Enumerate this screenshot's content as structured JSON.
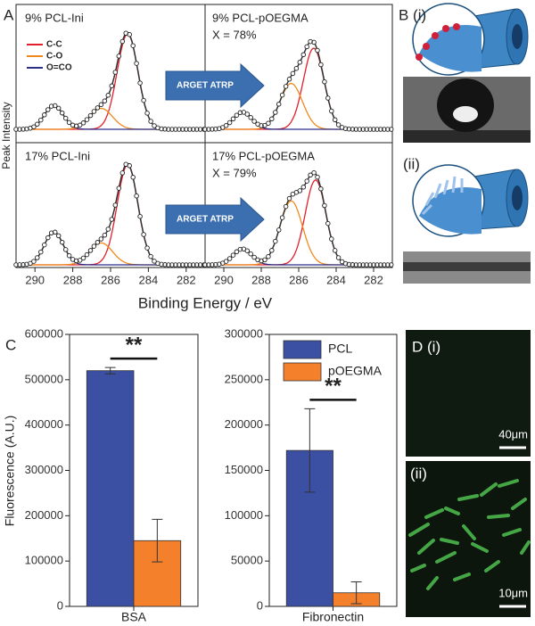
{
  "chart_data": [
    {
      "type": "xps",
      "panel_label": "A",
      "ylabel": "Peak Intensity",
      "xlabel": "Binding Energy / eV",
      "xlim": [
        291,
        281
      ],
      "xticks": [
        290,
        288,
        286,
        284,
        282
      ],
      "arrow_label": "ARGET ATRP",
      "legend": [
        {
          "name": "C-C",
          "color": "#e0202a"
        },
        {
          "name": "C-O",
          "color": "#f08a1c"
        },
        {
          "name": "O=CO",
          "color": "#2a2f8a"
        }
      ],
      "spectra": [
        {
          "labels": [
            "9% PCL-Ini"
          ],
          "components": [
            {
              "center": 285.1,
              "height": 100,
              "width": 0.55
            },
            {
              "center": 286.5,
              "height": 22,
              "width": 0.6
            },
            {
              "center": 289.0,
              "height": 25,
              "width": 0.5
            }
          ]
        },
        {
          "labels": [
            "9% PCL-pOEGMA",
            "X = 78%"
          ],
          "components": [
            {
              "center": 285.2,
              "height": 85,
              "width": 0.55
            },
            {
              "center": 286.4,
              "height": 48,
              "width": 0.6
            },
            {
              "center": 289.0,
              "height": 18,
              "width": 0.5
            }
          ]
        },
        {
          "labels": [
            "17% PCL-Ini"
          ],
          "components": [
            {
              "center": 285.1,
              "height": 100,
              "width": 0.55
            },
            {
              "center": 286.5,
              "height": 22,
              "width": 0.6
            },
            {
              "center": 289.0,
              "height": 33,
              "width": 0.5
            }
          ]
        },
        {
          "labels": [
            "17% PCL-pOEGMA",
            "X = 79%"
          ],
          "components": [
            {
              "center": 285.1,
              "height": 85,
              "width": 0.55
            },
            {
              "center": 286.4,
              "height": 64,
              "width": 0.6
            },
            {
              "center": 289.0,
              "height": 16,
              "width": 0.5
            }
          ]
        }
      ]
    },
    {
      "type": "grouped-bar",
      "panel_label": "C",
      "ylabel": "Fluorescence (A.U.)",
      "series": [
        {
          "name": "PCL",
          "color": "#3b4fa3"
        },
        {
          "name": "pOEGMA",
          "color": "#f4802c"
        }
      ],
      "subplots": [
        {
          "category": "BSA",
          "ylim": [
            0,
            600000
          ],
          "yticks": [
            0,
            100000,
            200000,
            300000,
            400000,
            500000,
            600000
          ],
          "values": [
            520000,
            145000
          ],
          "errors": [
            7000,
            47000
          ],
          "significance": "**"
        },
        {
          "category": "Fibronectin",
          "ylim": [
            0,
            300000
          ],
          "yticks": [
            0,
            50000,
            100000,
            150000,
            200000,
            250000,
            300000
          ],
          "values": [
            172000,
            15000
          ],
          "errors": [
            46000,
            12000
          ],
          "significance": "**"
        }
      ]
    }
  ],
  "images": {
    "B": {
      "label": "B (i)",
      "sub_label": "(ii)"
    },
    "D": {
      "label": "D (i)",
      "sub_label": "(ii)",
      "scale_bars": [
        "40μm",
        "10μm"
      ]
    }
  }
}
